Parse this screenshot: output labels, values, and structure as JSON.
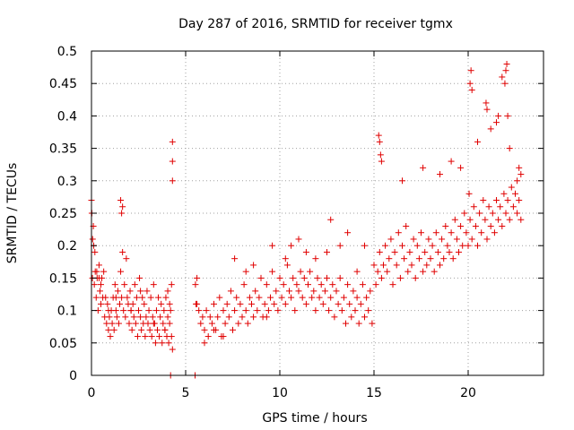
{
  "chart_data": {
    "type": "scatter",
    "title": "Day 287 of 2016, SRMTID for receiver tgmx",
    "xlabel": "GPS time / hours",
    "ylabel": "SRMTID / TECUs",
    "xlim": [
      0,
      24
    ],
    "ylim": [
      0,
      0.5
    ],
    "xticks": [
      {
        "value": 0,
        "label": "0"
      },
      {
        "value": 5,
        "label": "5"
      },
      {
        "value": 10,
        "label": "10"
      },
      {
        "value": 15,
        "label": "15"
      },
      {
        "value": 20,
        "label": "20"
      }
    ],
    "yticks": [
      {
        "value": 0,
        "label": "0"
      },
      {
        "value": 0.05,
        "label": "0.05"
      },
      {
        "value": 0.1,
        "label": "0.1"
      },
      {
        "value": 0.15,
        "label": "0.15"
      },
      {
        "value": 0.2,
        "label": "0.2"
      },
      {
        "value": 0.25,
        "label": "0.25"
      },
      {
        "value": 0.3,
        "label": "0.3"
      },
      {
        "value": 0.35,
        "label": "0.35"
      },
      {
        "value": 0.4,
        "label": "0.4"
      },
      {
        "value": 0.45,
        "label": "0.45"
      },
      {
        "value": 0.5,
        "label": "0.5"
      }
    ],
    "grid": true,
    "marker": "plus",
    "color": "#e00000",
    "series": [
      {
        "name": "SRMTID",
        "x": [
          0.0,
          0.05,
          0.1,
          0.15,
          0.2,
          0.25,
          0.3,
          0.35,
          0.4,
          0.45,
          0.5,
          0.55,
          0.6,
          0.65,
          0.7,
          0.75,
          0.8,
          0.85,
          0.9,
          0.95,
          1.0,
          1.05,
          1.1,
          1.15,
          1.2,
          1.25,
          1.3,
          1.35,
          1.4,
          1.45,
          1.5,
          1.55,
          1.6,
          1.65,
          1.7,
          1.75,
          1.8,
          1.85,
          1.9,
          1.95,
          2.0,
          2.05,
          2.1,
          2.15,
          2.2,
          2.25,
          2.3,
          2.35,
          2.4,
          2.45,
          2.5,
          2.55,
          2.6,
          2.65,
          2.7,
          2.75,
          2.8,
          2.85,
          2.9,
          2.95,
          3.0,
          3.05,
          3.1,
          3.15,
          3.2,
          3.25,
          3.3,
          3.35,
          3.4,
          3.45,
          3.5,
          3.55,
          3.6,
          3.65,
          3.7,
          3.75,
          3.8,
          3.85,
          3.9,
          3.95,
          4.0,
          4.05,
          4.1,
          4.15,
          4.2,
          4.25,
          4.3,
          0.02,
          0.06,
          0.12,
          0.18,
          0.28,
          0.4,
          0.5,
          0.9,
          1.3,
          1.55,
          1.6,
          1.65,
          2.1,
          2.6,
          3.3,
          3.9,
          4.05,
          4.15,
          4.25,
          4.3,
          4.3,
          4.3,
          4.2,
          5.5,
          5.52,
          5.55,
          5.6,
          5.7,
          5.8,
          5.9,
          6.0,
          6.1,
          6.2,
          6.3,
          6.4,
          6.5,
          6.6,
          6.7,
          6.8,
          6.9,
          7.0,
          7.1,
          7.2,
          7.3,
          7.4,
          7.5,
          7.6,
          7.7,
          7.8,
          7.9,
          8.0,
          8.1,
          8.2,
          8.3,
          8.4,
          8.5,
          8.6,
          8.7,
          8.8,
          8.9,
          9.0,
          9.1,
          9.2,
          9.3,
          9.4,
          9.5,
          9.6,
          9.7,
          9.8,
          9.9,
          10.0,
          10.1,
          10.2,
          10.3,
          10.4,
          10.5,
          10.6,
          10.7,
          10.8,
          10.9,
          11.0,
          11.1,
          11.2,
          11.3,
          11.4,
          11.5,
          11.6,
          11.7,
          11.8,
          11.9,
          12.0,
          12.1,
          12.2,
          12.3,
          12.4,
          12.5,
          12.6,
          12.7,
          12.8,
          12.9,
          13.0,
          13.1,
          13.2,
          13.3,
          13.4,
          13.5,
          13.6,
          13.7,
          13.8,
          13.9,
          14.0,
          14.1,
          14.2,
          14.3,
          14.4,
          14.5,
          14.6,
          14.7,
          14.8,
          14.9,
          5.6,
          6.0,
          6.5,
          7.0,
          7.6,
          8.2,
          8.6,
          9.3,
          9.6,
          10.3,
          10.6,
          11.0,
          11.4,
          11.9,
          12.5,
          12.7,
          13.2,
          13.6,
          14.1,
          14.5,
          15.0,
          15.1,
          15.2,
          15.3,
          15.4,
          15.5,
          15.6,
          15.7,
          15.8,
          15.9,
          16.0,
          16.1,
          16.2,
          16.3,
          16.4,
          16.5,
          16.6,
          16.7,
          16.8,
          16.9,
          17.0,
          17.1,
          17.2,
          17.3,
          17.4,
          17.5,
          17.6,
          17.7,
          17.8,
          17.9,
          18.0,
          18.1,
          18.2,
          18.3,
          18.4,
          18.5,
          18.6,
          18.7,
          18.8,
          18.9,
          19.0,
          19.1,
          19.2,
          19.3,
          19.4,
          19.5,
          19.6,
          19.7,
          19.8,
          19.9,
          20.0,
          20.1,
          20.2,
          20.3,
          20.4,
          20.5,
          20.6,
          20.7,
          20.8,
          20.9,
          21.0,
          21.1,
          21.2,
          21.3,
          21.4,
          21.5,
          21.6,
          21.7,
          21.8,
          21.9,
          22.0,
          22.1,
          22.2,
          22.3,
          22.4,
          22.5,
          22.6,
          22.7,
          22.8,
          15.25,
          15.3,
          15.35,
          15.4,
          16.5,
          17.6,
          18.5,
          19.1,
          19.6,
          20.05,
          20.1,
          20.15,
          20.2,
          20.5,
          21.0,
          21.2,
          21.6,
          21.8,
          21.95,
          22.0,
          22.05,
          22.1,
          22.2,
          22.6,
          22.7,
          22.8,
          20.95,
          21.5
        ],
        "y": [
          0.27,
          0.15,
          0.23,
          0.14,
          0.16,
          0.12,
          0.15,
          0.1,
          0.17,
          0.13,
          0.11,
          0.15,
          0.12,
          0.16,
          0.09,
          0.12,
          0.08,
          0.11,
          0.07,
          0.09,
          0.06,
          0.1,
          0.08,
          0.12,
          0.07,
          0.14,
          0.1,
          0.09,
          0.13,
          0.08,
          0.11,
          0.16,
          0.12,
          0.19,
          0.1,
          0.14,
          0.09,
          0.18,
          0.12,
          0.11,
          0.08,
          0.13,
          0.1,
          0.07,
          0.11,
          0.09,
          0.14,
          0.08,
          0.12,
          0.06,
          0.1,
          0.15,
          0.09,
          0.07,
          0.12,
          0.08,
          0.11,
          0.06,
          0.09,
          0.13,
          0.08,
          0.1,
          0.07,
          0.12,
          0.06,
          0.09,
          0.14,
          0.08,
          0.05,
          0.1,
          0.07,
          0.12,
          0.06,
          0.09,
          0.11,
          0.05,
          0.08,
          0.1,
          0.07,
          0.12,
          0.06,
          0.09,
          0.05,
          0.08,
          0.1,
          0.06,
          0.04,
          0.25,
          0.21,
          0.2,
          0.19,
          0.16,
          0.15,
          0.14,
          0.1,
          0.12,
          0.27,
          0.25,
          0.26,
          0.1,
          0.13,
          0.08,
          0.07,
          0.13,
          0.11,
          0.14,
          0.36,
          0.33,
          0.3,
          0.0,
          0.0,
          0.14,
          0.11,
          0.15,
          0.1,
          0.08,
          0.09,
          0.07,
          0.1,
          0.06,
          0.09,
          0.08,
          0.11,
          0.07,
          0.09,
          0.12,
          0.06,
          0.1,
          0.08,
          0.11,
          0.09,
          0.13,
          0.07,
          0.1,
          0.12,
          0.08,
          0.11,
          0.09,
          0.14,
          0.1,
          0.08,
          0.12,
          0.11,
          0.09,
          0.13,
          0.1,
          0.12,
          0.15,
          0.09,
          0.11,
          0.14,
          0.1,
          0.12,
          0.16,
          0.11,
          0.13,
          0.1,
          0.15,
          0.12,
          0.14,
          0.11,
          0.17,
          0.13,
          0.12,
          0.15,
          0.1,
          0.14,
          0.13,
          0.16,
          0.12,
          0.15,
          0.11,
          0.14,
          0.16,
          0.12,
          0.13,
          0.1,
          0.15,
          0.12,
          0.14,
          0.11,
          0.13,
          0.15,
          0.1,
          0.12,
          0.14,
          0.09,
          0.13,
          0.11,
          0.15,
          0.1,
          0.12,
          0.08,
          0.14,
          0.11,
          0.09,
          0.13,
          0.1,
          0.12,
          0.08,
          0.11,
          0.14,
          0.09,
          0.12,
          0.1,
          0.13,
          0.08,
          0.11,
          0.05,
          0.07,
          0.06,
          0.18,
          0.16,
          0.17,
          0.09,
          0.2,
          0.18,
          0.2,
          0.21,
          0.19,
          0.18,
          0.19,
          0.24,
          0.2,
          0.22,
          0.16,
          0.2,
          0.17,
          0.14,
          0.16,
          0.19,
          0.15,
          0.17,
          0.2,
          0.16,
          0.18,
          0.21,
          0.14,
          0.19,
          0.17,
          0.22,
          0.15,
          0.2,
          0.18,
          0.23,
          0.16,
          0.19,
          0.17,
          0.21,
          0.15,
          0.2,
          0.18,
          0.22,
          0.16,
          0.19,
          0.17,
          0.21,
          0.18,
          0.2,
          0.16,
          0.22,
          0.19,
          0.17,
          0.21,
          0.18,
          0.23,
          0.2,
          0.19,
          0.22,
          0.18,
          0.24,
          0.21,
          0.19,
          0.23,
          0.2,
          0.25,
          0.22,
          0.2,
          0.24,
          0.21,
          0.26,
          0.23,
          0.2,
          0.25,
          0.22,
          0.27,
          0.24,
          0.21,
          0.26,
          0.23,
          0.25,
          0.22,
          0.27,
          0.24,
          0.26,
          0.23,
          0.28,
          0.25,
          0.27,
          0.24,
          0.29,
          0.26,
          0.28,
          0.25,
          0.27,
          0.24,
          0.37,
          0.36,
          0.34,
          0.33,
          0.3,
          0.32,
          0.31,
          0.33,
          0.32,
          0.28,
          0.45,
          0.47,
          0.44,
          0.36,
          0.41,
          0.38,
          0.4,
          0.46,
          0.45,
          0.47,
          0.48,
          0.4,
          0.35,
          0.3,
          0.32,
          0.31,
          0.42,
          0.39
        ]
      }
    ]
  }
}
